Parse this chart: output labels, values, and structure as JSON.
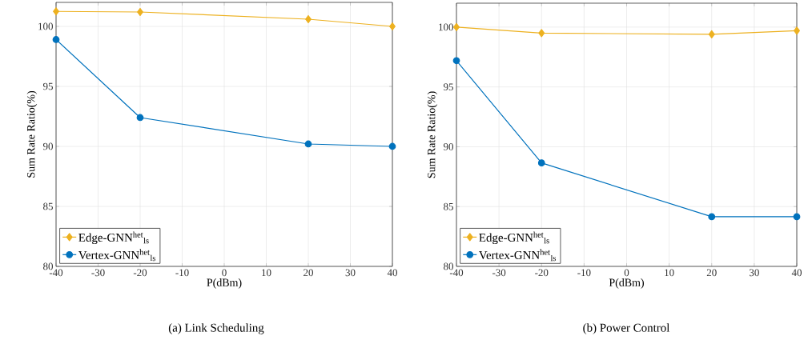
{
  "chart_data": [
    {
      "type": "line",
      "title": "(a)  Link Scheduling",
      "xlabel": "P(dBm)",
      "ylabel": "Sum Rate Ratio(%)",
      "x": [
        -40,
        -20,
        20,
        40
      ],
      "xlim": [
        -40,
        40
      ],
      "xticks": [
        -40,
        -30,
        -20,
        -10,
        0,
        10,
        20,
        30,
        40
      ],
      "ylim": [
        80,
        102
      ],
      "yticks": [
        80,
        85,
        90,
        95,
        100
      ],
      "grid": true,
      "legend": "bottom left",
      "series": [
        {
          "name": "Edge-GNN$^{het}$$_{ls}$",
          "color": "#edb120",
          "marker": "diamond",
          "values": [
            101.25,
            101.2,
            100.6,
            100.0
          ]
        },
        {
          "name": "Vertex-GNN$^{het}$$_{ls}$",
          "color": "#0072bd",
          "marker": "circle",
          "values": [
            98.9,
            92.4,
            90.2,
            90.0
          ]
        }
      ]
    },
    {
      "type": "line",
      "title": "(b)  Power Control",
      "xlabel": "P(dBm)",
      "ylabel": "Sum Rate Ratio(%)",
      "x": [
        -40,
        -20,
        20,
        40
      ],
      "xlim": [
        -40,
        40
      ],
      "xticks": [
        -40,
        -30,
        -20,
        -10,
        0,
        10,
        20,
        30,
        40
      ],
      "ylim": [
        80,
        102
      ],
      "yticks": [
        80,
        85,
        90,
        95,
        100
      ],
      "grid": true,
      "legend": "bottom left",
      "series": [
        {
          "name": "Edge-GNN$^{het}$$_{ls}$",
          "color": "#edb120",
          "marker": "diamond",
          "values": [
            100.0,
            99.5,
            99.4,
            99.7
          ]
        },
        {
          "name": "Vertex-GNN$^{het}$$_{ls}$",
          "color": "#0072bd",
          "marker": "circle",
          "values": [
            97.2,
            88.65,
            84.15,
            84.15
          ]
        }
      ]
    }
  ]
}
